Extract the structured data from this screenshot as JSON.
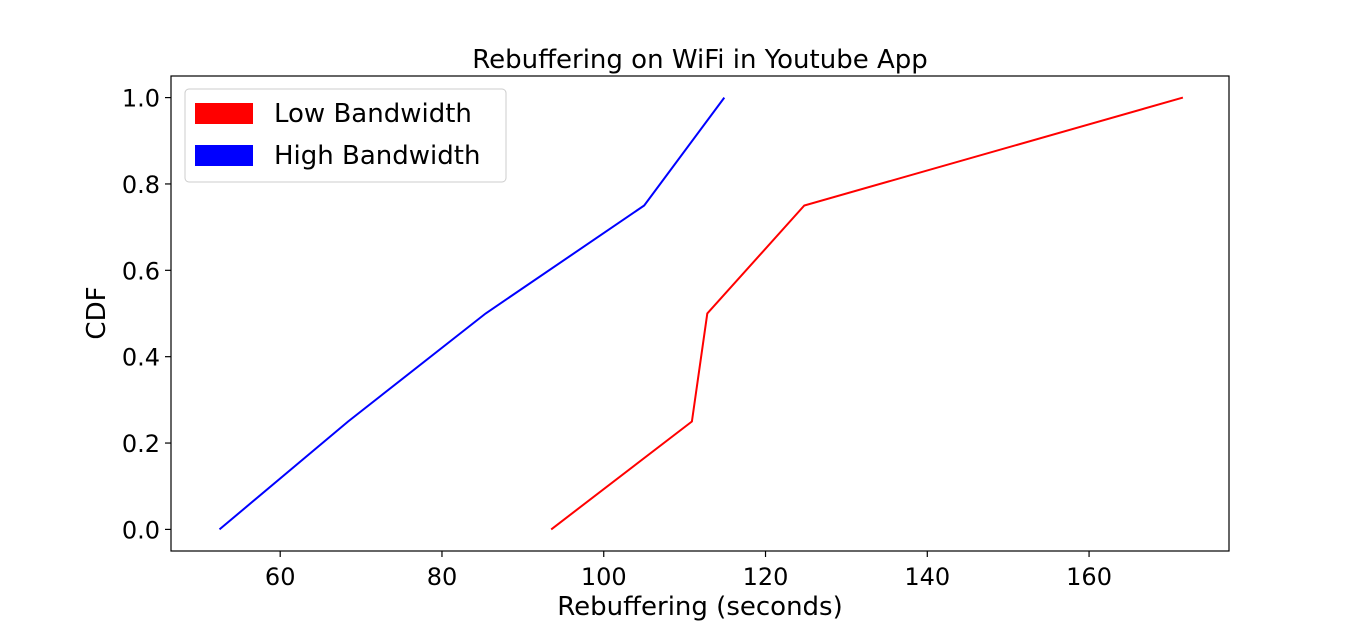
{
  "chart_data": {
    "type": "line",
    "title": "Rebuffering on WiFi in Youtube App",
    "xlabel": "Rebuffering (seconds)",
    "ylabel": "CDF",
    "xlim": [
      46.5,
      177.3
    ],
    "ylim": [
      -0.05,
      1.05
    ],
    "xticks": [
      60,
      80,
      100,
      120,
      140,
      160
    ],
    "yticks": [
      0.0,
      0.2,
      0.4,
      0.6,
      0.8,
      1.0
    ],
    "xtick_labels": [
      "60",
      "80",
      "100",
      "120",
      "140",
      "160"
    ],
    "ytick_labels": [
      "0.0",
      "0.2",
      "0.4",
      "0.6",
      "0.8",
      "1.0"
    ],
    "grid": false,
    "legend_position": "top-left",
    "series": [
      {
        "name": "Low Bandwidth",
        "color": "#ff0000",
        "x": [
          93.5,
          110.9,
          112.8,
          124.8,
          171.6
        ],
        "y": [
          0.0,
          0.25,
          0.5,
          0.75,
          1.0
        ]
      },
      {
        "name": "High Bandwidth",
        "color": "#0000ff",
        "x": [
          52.5,
          68.4,
          85.4,
          105.0,
          114.9
        ],
        "y": [
          0.0,
          0.25,
          0.5,
          0.75,
          1.0
        ]
      }
    ]
  }
}
